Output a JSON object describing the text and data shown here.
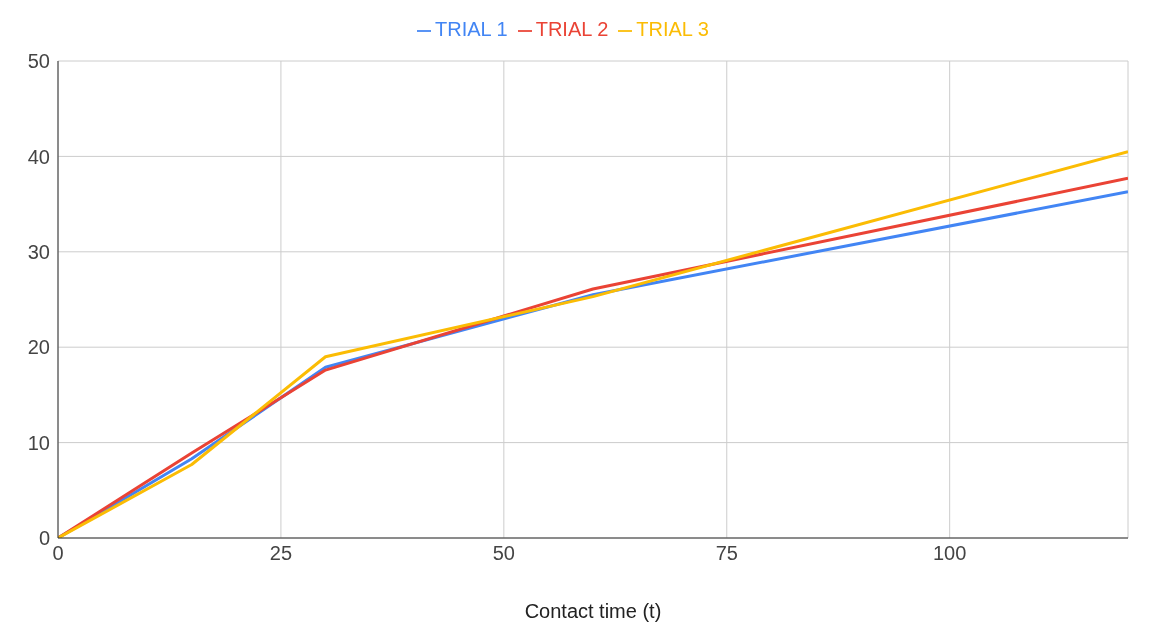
{
  "chart_data": {
    "type": "line",
    "xlabel": "Contact time (t)",
    "x": [
      0,
      15,
      30,
      60,
      120
    ],
    "series": [
      {
        "name": "TRIAL 1",
        "color": "#4285f4",
        "values": [
          0,
          8.3,
          17.9,
          25.5,
          36.3
        ]
      },
      {
        "name": "TRIAL 2",
        "color": "#ea4335",
        "values": [
          0,
          8.9,
          17.6,
          26.1,
          37.7
        ]
      },
      {
        "name": "TRIAL 3",
        "color": "#fbbc04",
        "values": [
          0,
          7.7,
          19.0,
          25.3,
          40.5
        ]
      }
    ],
    "xlim": [
      0,
      120
    ],
    "xticks": [
      0,
      25,
      50,
      75,
      100
    ],
    "ylim": [
      0,
      50
    ],
    "yticks": [
      0,
      10,
      20,
      30,
      40,
      50
    ],
    "grid": true,
    "legend": "top",
    "marker": "none",
    "line_style": "solid"
  }
}
